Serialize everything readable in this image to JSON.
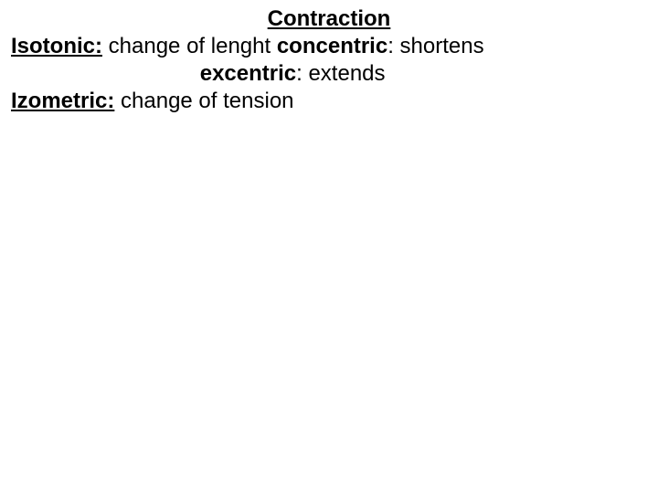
{
  "slide": {
    "title": "Contraction",
    "line1_label": "Isotonic:",
    "line1_rest": " change of lenght ",
    "line1_sub1_label": "concentric",
    "line1_sub1_rest": ": shortens",
    "line2_indent": "                               ",
    "line2_label": "excentric",
    "line2_rest": ": extends",
    "line3_label": "Izometric:",
    "line3_rest": " change of tension",
    "colors": {
      "background": "#ffffff",
      "text": "#000000"
    },
    "font_size_pt": 18,
    "font_family": "Arial"
  }
}
